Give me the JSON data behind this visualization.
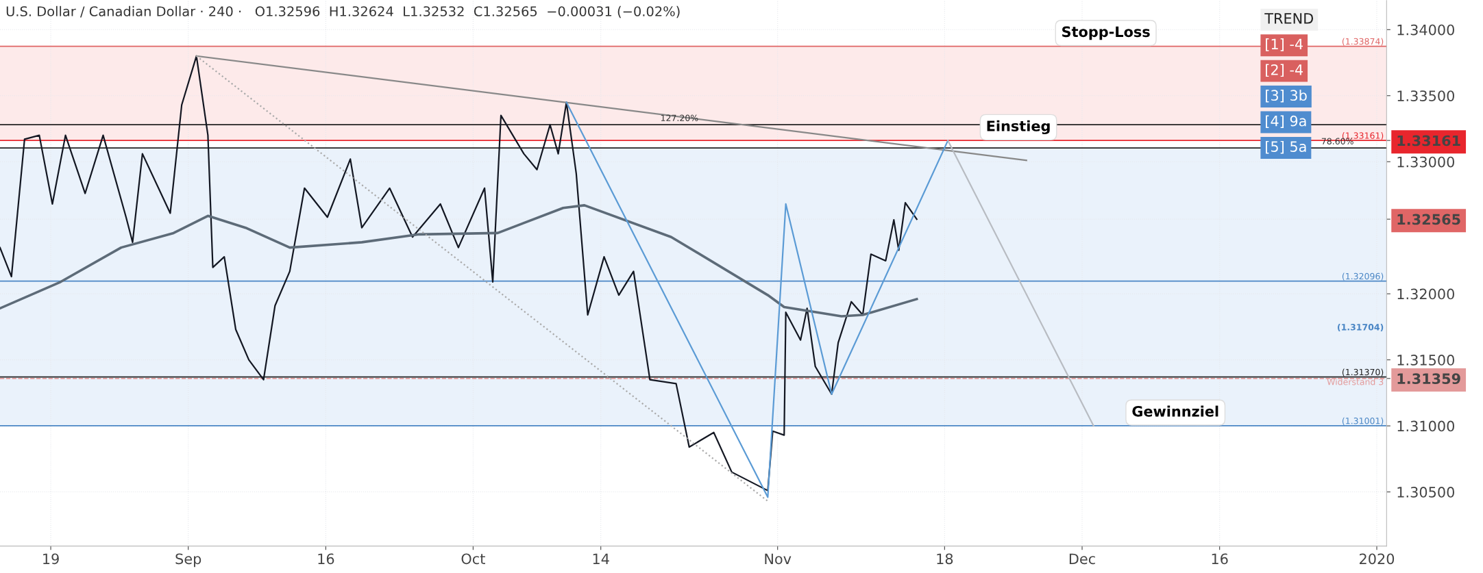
{
  "chart_data": {
    "type": "line",
    "title": "U.S. Dollar / Canadian Dollar · 240 ·   O1.32596  H1.32624  L1.32532  C1.32565  −0.00031 (−0.02%)",
    "xlim": [
      "2019-08-13T20:00",
      "2020-01-02"
    ],
    "xticks": [
      {
        "value": "2019-08-19",
        "label": "19"
      },
      {
        "value": "2019-09-02",
        "label": "Sep"
      },
      {
        "value": "2019-09-16",
        "label": "16"
      },
      {
        "value": "2019-10-01",
        "label": "Oct"
      },
      {
        "value": "2019-10-14",
        "label": "14"
      },
      {
        "value": "2019-11-01",
        "label": "Nov"
      },
      {
        "value": "2019-11-18",
        "label": "18"
      },
      {
        "value": "2019-12-02",
        "label": "Dec"
      },
      {
        "value": "2019-12-16",
        "label": "16"
      },
      {
        "value": "2020-01-01",
        "label": "2020"
      }
    ],
    "ylim": [
      1.3009,
      1.3422
    ],
    "yticks": [
      "1.30500",
      "1.31000",
      "1.31500",
      "1.32000",
      {
        "value": 1.32565,
        "label": "1.32565"
      },
      "1.33000",
      {
        "value": 1.33161,
        "label": "1.33161"
      },
      "1.33500",
      "1.34000",
      {
        "value": 1.31359,
        "label": "1.31359"
      }
    ],
    "grid": true,
    "legend": false,
    "series": [
      {
        "color": "#131722",
        "line_style": "solid",
        "x": [
          "2019-08-13T20:00",
          "2019-08-15T00:00",
          "2019-08-16T08:00",
          "2019-08-17T20:00",
          "2019-08-19T04:00",
          "2019-08-20T12:00",
          "2019-08-22T12:00",
          "2019-08-24T08:00",
          "2019-08-26T16:00",
          "2019-08-27T08:00",
          "2019-08-28T08:00",
          "2019-08-31T04:00",
          "2019-09-01T08:00",
          "2019-09-02T20:00",
          "2019-09-04T00:00",
          "2019-09-04T12:00",
          "2019-09-05T16:00",
          "2019-09-06T20:00",
          "2019-09-08T04:00",
          "2019-09-09T16:00",
          "2019-09-10T20:00",
          "2019-09-12T08:00",
          "2019-09-13T20:00",
          "2019-09-16T04:00",
          "2019-09-18T12:00",
          "2019-09-19T16:00",
          "2019-09-22T12:00",
          "2019-09-24T20:00",
          "2019-09-27T16:00",
          "2019-09-29T12:00",
          "2019-10-02T04:00",
          "2019-10-03T00:00",
          "2019-10-03T20:00",
          "2019-10-06T04:00",
          "2019-10-07T12:00",
          "2019-10-08T20:00",
          "2019-10-09T16:00",
          "2019-10-10T12:00",
          "2019-10-11T12:00",
          "2019-10-12T16:00",
          "2019-10-14T08:00",
          "2019-10-15T20:00",
          "2019-10-17T08:00",
          "2019-10-19T00:00",
          "2019-10-21T16:00",
          "2019-10-23T00:00",
          "2019-10-25T12:00",
          "2019-10-27T08:00",
          "2019-10-31T00:00",
          "2019-10-31T12:00",
          "2019-11-01T16:00",
          "2019-11-01T20:00",
          "2019-11-03T08:00",
          "2019-11-04T00:00",
          "2019-11-04T20:00",
          "2019-11-06T12:00",
          "2019-11-07T04:00",
          "2019-11-08T12:00",
          "2019-11-09T16:00",
          "2019-11-10T12:00",
          "2019-11-12T00:00",
          "2019-11-12T20:00",
          "2019-11-13T08:00",
          "2019-11-14T00:00",
          "2019-11-15T04:00"
        ],
        "values": [
          1.3235,
          1.3213,
          1.3317,
          1.332,
          1.3268,
          1.332,
          1.3276,
          1.332,
          1.3258,
          1.3239,
          1.3306,
          1.3261,
          1.3343,
          1.338,
          1.332,
          1.322,
          1.3228,
          1.3173,
          1.315,
          1.3135,
          1.3191,
          1.3217,
          1.328,
          1.3258,
          1.3302,
          1.325,
          1.328,
          1.3243,
          1.3268,
          1.3235,
          1.328,
          1.3209,
          1.3335,
          1.3306,
          1.3294,
          1.3328,
          1.3306,
          1.3345,
          1.3291,
          1.3184,
          1.3228,
          1.3199,
          1.3217,
          1.3135,
          1.3132,
          1.3084,
          1.3095,
          1.3065,
          1.3051,
          1.3096,
          1.3093,
          1.3186,
          1.3165,
          1.3189,
          1.3145,
          1.3124,
          1.3163,
          1.3194,
          1.3184,
          1.323,
          1.3225,
          1.3256,
          1.3233,
          1.3269,
          1.32565
        ]
      },
      {
        "color": "#5d6b78",
        "line_style": "solid",
        "x": [
          "2019-08-13T20:00",
          "2019-08-20T00:00",
          "2019-08-26T04:00",
          "2019-08-31T12:00",
          "2019-09-04T00:00",
          "2019-09-07T20:00",
          "2019-09-12T08:00",
          "2019-09-19T16:00",
          "2019-09-25T12:00",
          "2019-10-03T12:00",
          "2019-10-10T04:00",
          "2019-10-12T08:00",
          "2019-10-21T04:00",
          "2019-10-31T00:00",
          "2019-11-01T16:00",
          "2019-11-07T12:00",
          "2019-11-09T16:00",
          "2019-11-15T04:00"
        ],
        "values": [
          1.3189,
          1.3209,
          1.3235,
          1.3246,
          1.3259,
          1.325,
          1.3235,
          1.3239,
          1.3245,
          1.3246,
          1.3265,
          1.3267,
          1.3243,
          1.3199,
          1.319,
          1.3183,
          1.3184,
          1.3196
        ]
      },
      {
        "color": "#888888",
        "line_style": "solid",
        "x": [
          "2019-09-02T20:00",
          "2019-11-26T08:00"
        ],
        "values": [
          1.338,
          1.3301
        ]
      },
      {
        "color": "#aaaaaa",
        "line_style": "dotted",
        "x": [
          "2019-09-02T20:00",
          "2019-10-31T00:00"
        ],
        "values": [
          1.338,
          1.3043
        ]
      },
      {
        "color": "#5b9bd5",
        "line_style": "solid",
        "x": [
          "2019-10-10T12:00",
          "2019-10-31T00:00",
          "2019-11-01T20:00",
          "2019-11-06T12:00",
          "2019-11-18T08:00"
        ],
        "values": [
          1.3345,
          1.3046,
          1.3268,
          1.3124,
          1.3316
        ]
      },
      {
        "color": "#b8bcc2",
        "line_style": "solid",
        "x": [
          "2019-11-18T08:00",
          "2019-12-03T04:00"
        ],
        "values": [
          1.3316,
          1.31
        ]
      }
    ],
    "bands": [
      {
        "axis": "y",
        "from": 1.33161,
        "to": 1.33874,
        "color": "#fdeaea"
      },
      {
        "axis": "y",
        "from": 1.31001,
        "to": 1.33104,
        "color": "#eaf2fb"
      }
    ],
    "ref_lines": [
      {
        "axis": "y",
        "value": 1.33874,
        "label": "(1.33874)",
        "color": "#e06666",
        "line_style": "solid"
      },
      {
        "axis": "y",
        "value": 1.3328,
        "color": "#222222",
        "line_style": "solid"
      },
      {
        "axis": "y",
        "value": 1.33161,
        "label": "(1.33161)",
        "color": "#e8262d",
        "line_style": "solid"
      },
      {
        "axis": "y",
        "value": 1.33104,
        "color": "#222222",
        "line_style": "solid"
      },
      {
        "axis": "y",
        "value": 1.32096,
        "label": "(1.32096)",
        "color": "#4a86c5",
        "line_style": "solid"
      },
      {
        "axis": "y",
        "value": 1.3137,
        "label": "(1.31370)",
        "color": "#222222",
        "line_style": "solid"
      },
      {
        "axis": "y",
        "value": 1.31359,
        "label": "Widerstand 3",
        "color": "#e39a9a",
        "line_style": "dashed"
      },
      {
        "axis": "y",
        "value": 1.31001,
        "label": "(1.31001)",
        "color": "#4a86c5",
        "line_style": "solid"
      }
    ],
    "annotations": [
      {
        "text": "Stopp-Loss",
        "x": "2019-11-26T00:00",
        "y": 1.33874
      },
      {
        "text": "Einstieg",
        "x": "2019-11-18T08:00",
        "y": 1.3316
      },
      {
        "text": "Gewinnziel",
        "x": "2019-12-03T04:00",
        "y": 1.31
      },
      {
        "text": "127.20%",
        "x": "2019-10-22T00:00",
        "y": 1.3328
      },
      {
        "text": "78.60%",
        "x": "2019-12-28T00:00",
        "y": 1.33104
      },
      "(1.31704)",
      "TREND",
      "[1] -4",
      "[2] -4",
      "[3] 3b",
      "[4] 9a",
      "[5] 5a"
    ]
  }
}
